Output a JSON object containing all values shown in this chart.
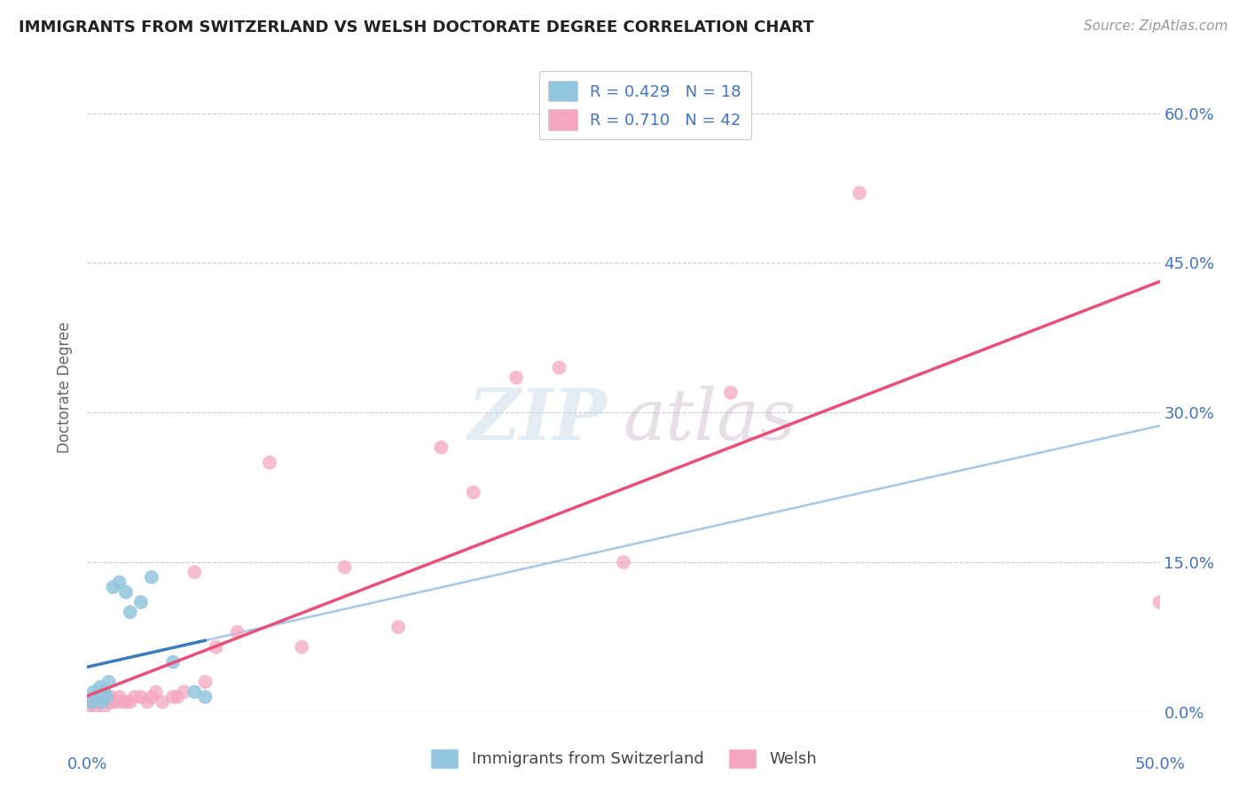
{
  "title": "IMMIGRANTS FROM SWITZERLAND VS WELSH DOCTORATE DEGREE CORRELATION CHART",
  "source": "Source: ZipAtlas.com",
  "ylabel": "Doctorate Degree",
  "ytick_values": [
    0.0,
    15.0,
    30.0,
    45.0,
    60.0
  ],
  "xlim": [
    0.0,
    50.0
  ],
  "ylim": [
    0.0,
    65.0
  ],
  "blue_color": "#92c5de",
  "pink_color": "#f4a6c0",
  "blue_line_color": "#3a7bbf",
  "pink_line_color": "#e8507a",
  "dashed_line_color": "#a8c8e8",
  "tick_color": "#4472c4",
  "blue_scatter_x": [
    0.2,
    0.3,
    0.4,
    0.5,
    0.6,
    0.7,
    0.8,
    0.9,
    1.0,
    1.2,
    1.5,
    1.8,
    2.0,
    2.5,
    3.0,
    4.0,
    5.0,
    5.5
  ],
  "blue_scatter_y": [
    1.0,
    2.0,
    1.5,
    1.5,
    2.5,
    1.0,
    2.0,
    1.5,
    3.0,
    12.5,
    13.0,
    12.0,
    10.0,
    11.0,
    13.5,
    5.0,
    2.0,
    1.5
  ],
  "pink_scatter_x": [
    0.1,
    0.2,
    0.3,
    0.4,
    0.5,
    0.6,
    0.7,
    0.8,
    0.9,
    1.0,
    1.1,
    1.2,
    1.3,
    1.5,
    1.6,
    1.8,
    2.0,
    2.2,
    2.5,
    2.8,
    3.0,
    3.2,
    3.5,
    4.0,
    4.2,
    4.5,
    5.0,
    5.5,
    6.0,
    7.0,
    8.5,
    10.0,
    12.0,
    14.5,
    16.5,
    18.0,
    20.0,
    22.0,
    25.0,
    30.0,
    36.0,
    50.0
  ],
  "pink_scatter_y": [
    0.5,
    1.0,
    1.0,
    0.5,
    1.5,
    1.0,
    1.0,
    0.5,
    1.0,
    1.0,
    1.5,
    1.0,
    1.0,
    1.5,
    1.0,
    1.0,
    1.0,
    1.5,
    1.5,
    1.0,
    1.5,
    2.0,
    1.0,
    1.5,
    1.5,
    2.0,
    14.0,
    3.0,
    6.5,
    8.0,
    25.0,
    6.5,
    14.5,
    8.5,
    26.5,
    22.0,
    33.5,
    34.5,
    15.0,
    32.0,
    52.0,
    11.0
  ],
  "blue_line_x0": 0.0,
  "blue_line_x1": 5.5,
  "blue_line_y0": 0.5,
  "blue_line_y1": 13.0,
  "pink_line_x0": 0.0,
  "pink_line_x1": 50.0,
  "pink_line_y0": 0.0,
  "pink_line_y1": 33.0,
  "dash_line_x0": 5.0,
  "dash_line_x1": 50.0,
  "dash_line_y0": 7.0,
  "dash_line_y1": 45.0
}
